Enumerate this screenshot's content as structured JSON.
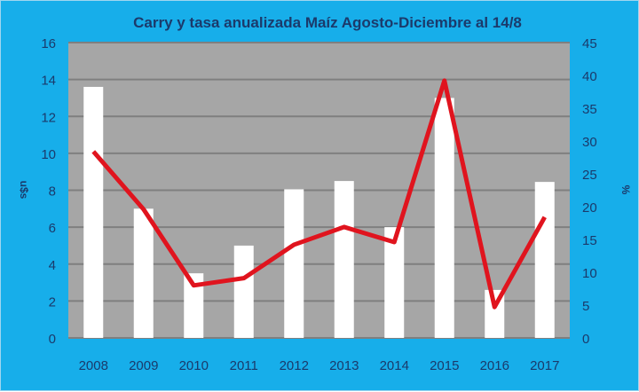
{
  "chart_data": {
    "type": "bar+line",
    "title": "Carry y tasa anualizada Maíz  Agosto-Diciembre al 14/8",
    "categories": [
      "2008",
      "2009",
      "2010",
      "2011",
      "2012",
      "2013",
      "2014",
      "2015",
      "2016",
      "2017"
    ],
    "series": [
      {
        "name": "Carry",
        "type": "bar",
        "axis": "left",
        "color": "#ffffff",
        "values": [
          13.6,
          7.0,
          3.5,
          5.0,
          8.05,
          8.5,
          6.0,
          13.0,
          2.6,
          8.45
        ]
      },
      {
        "name": "Tasa anualizada",
        "type": "line",
        "axis": "right",
        "color": "#e0141e",
        "values": [
          28.4,
          19.6,
          8.0,
          9.1,
          14.2,
          16.9,
          14.6,
          39.2,
          4.7,
          18.4
        ]
      }
    ],
    "ylabel": "u$s",
    "y2label": "%",
    "ylim": [
      0,
      16
    ],
    "yticks": [
      0,
      2,
      4,
      6,
      8,
      10,
      12,
      14,
      16
    ],
    "y2lim": [
      0,
      45
    ],
    "y2ticks": [
      0,
      5,
      10,
      15,
      20,
      25,
      30,
      35,
      40,
      45
    ],
    "grid": true,
    "legend": "none",
    "colors": {
      "background": "#17aeea",
      "plot": "#a6a6a6",
      "grid": "#7f7f7f",
      "text": "#1b3a6b"
    }
  }
}
